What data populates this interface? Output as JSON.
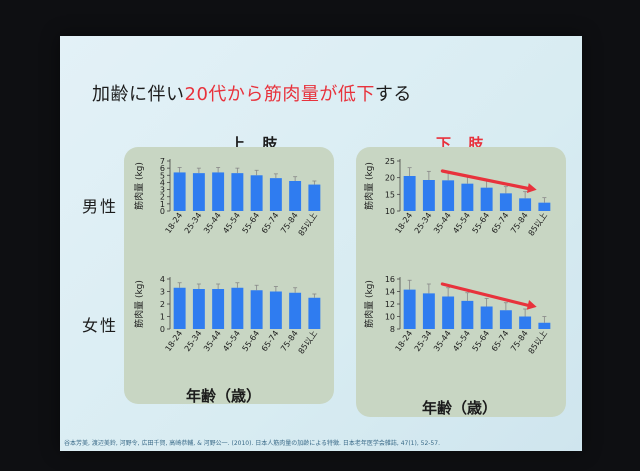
{
  "title": {
    "part1": "加齢に伴い",
    "part2": "20代から筋肉量が低下",
    "part3": "する"
  },
  "column_headers": {
    "upper": "上 肢",
    "lower": "下 肢"
  },
  "row_headers": {
    "male": "男性",
    "female": "女性"
  },
  "x_axis_label": "年齢（歳）",
  "citation": "谷本芳美, 渡辺美鈴, 河野令, 広田千賀, 高崎恭輔, & 河野公一. (2010). 日本人筋肉量の加齢による特徴. 日本老年医学会雑誌, 47(1), 52-57.",
  "colors": {
    "bar": "#2f7cf0",
    "arrow": "#e8323c",
    "panel": "#c8d6c3",
    "title_highlight": "#e8323c"
  },
  "chart_data": [
    {
      "type": "bar",
      "panel": "upper-limb-male",
      "categories": [
        "18-24",
        "25-34",
        "35-44",
        "45-54",
        "55-64",
        "65-74",
        "75-84",
        "85以上"
      ],
      "values": [
        5.4,
        5.3,
        5.4,
        5.3,
        5.0,
        4.6,
        4.2,
        3.7
      ],
      "errors": [
        0.7,
        0.7,
        0.7,
        0.7,
        0.7,
        0.6,
        0.6,
        0.5
      ],
      "ylabel": "筋肉量 (kg)",
      "ylim": [
        0,
        7
      ],
      "yticks": [
        0,
        1,
        2,
        3,
        4,
        5,
        6,
        7
      ],
      "arrow": false
    },
    {
      "type": "bar",
      "panel": "lower-limb-male",
      "categories": [
        "18-24",
        "25-34",
        "35-44",
        "45-54",
        "55-64",
        "65-74",
        "75-84",
        "85以上"
      ],
      "values": [
        20.5,
        19.3,
        19.2,
        18.2,
        17.0,
        15.3,
        13.8,
        12.5
      ],
      "errors": [
        2.5,
        2.6,
        2.4,
        2.3,
        2.1,
        2.0,
        2.0,
        1.5
      ],
      "ylabel": "筋肉量 (kg)",
      "ylim": [
        10,
        25
      ],
      "yticks": [
        10,
        15,
        20,
        25
      ],
      "arrow": true
    },
    {
      "type": "bar",
      "panel": "upper-limb-female",
      "categories": [
        "18-24",
        "25-34",
        "35-44",
        "45-54",
        "55-64",
        "65-74",
        "75-84",
        "85以上"
      ],
      "values": [
        3.3,
        3.2,
        3.2,
        3.3,
        3.1,
        3.0,
        2.9,
        2.5
      ],
      "errors": [
        0.4,
        0.4,
        0.4,
        0.4,
        0.4,
        0.4,
        0.4,
        0.3
      ],
      "ylabel": "筋肉量 (kg)",
      "ylim": [
        0,
        4
      ],
      "yticks": [
        0,
        1,
        2,
        3,
        4
      ],
      "arrow": false
    },
    {
      "type": "bar",
      "panel": "lower-limb-female",
      "categories": [
        "18-24",
        "25-34",
        "35-44",
        "45-54",
        "55-64",
        "65-74",
        "75-84",
        "85以上"
      ],
      "values": [
        14.3,
        13.7,
        13.2,
        12.5,
        11.6,
        11.0,
        10.0,
        9.0
      ],
      "errors": [
        1.5,
        1.5,
        1.4,
        1.3,
        1.3,
        1.2,
        1.2,
        1.0
      ],
      "ylabel": "筋肉量 (kg)",
      "ylim": [
        8,
        16
      ],
      "yticks": [
        8,
        10,
        12,
        14,
        16
      ],
      "arrow": true
    }
  ]
}
